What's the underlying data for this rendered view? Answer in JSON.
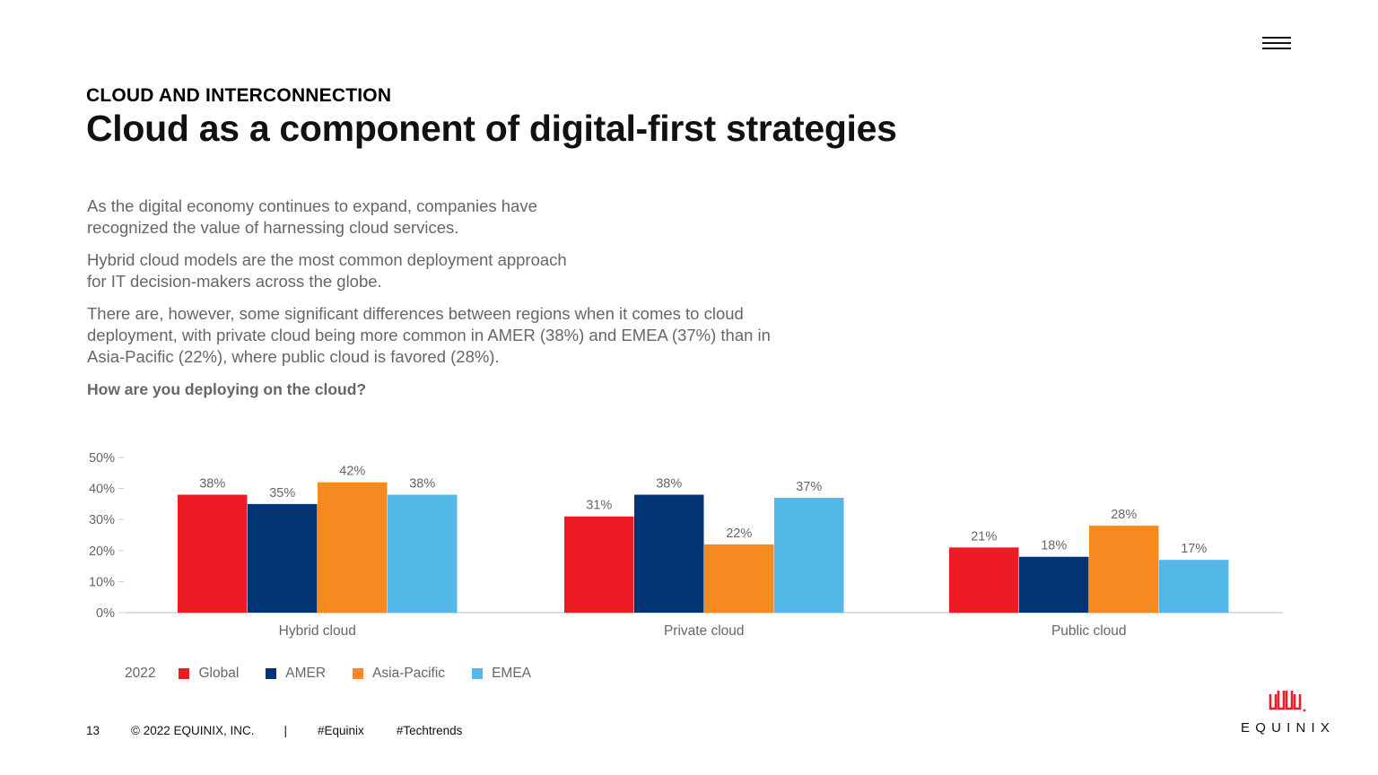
{
  "header": {
    "eyebrow": "CLOUD AND INTERCONNECTION",
    "title": "Cloud as a component of digital-first strategies"
  },
  "body": {
    "paragraph_1": "As the digital economy continues to expand, companies have recognized the value of harnessing cloud services.",
    "paragraph_2": "Hybrid cloud models are the most common deployment approach for IT decision-makers across the globe.",
    "paragraph_3": "There are, however, some significant differences between regions when it comes to cloud deployment, with private cloud being more common in AMER (38%) and EMEA (37%) than in Asia-Pacific (22%), where public cloud is favored (28%).",
    "question": "How are you deploying on the cloud?"
  },
  "chart_data": {
    "type": "bar",
    "categories": [
      "Hybrid cloud",
      "Private cloud",
      "Public cloud"
    ],
    "series": [
      {
        "name": "Global",
        "color": "#ED1C24",
        "values": [
          38,
          31,
          21
        ]
      },
      {
        "name": "AMER",
        "color": "#003473",
        "values": [
          35,
          38,
          18
        ]
      },
      {
        "name": "Asia-Pacific",
        "color": "#F6891F",
        "values": [
          42,
          22,
          28
        ]
      },
      {
        "name": "EMEA",
        "color": "#53B7E8",
        "values": [
          38,
          37,
          17
        ]
      }
    ],
    "value_suffix": "%",
    "yticks": [
      "0%",
      "10%",
      "20%",
      "30%",
      "40%",
      "50%"
    ],
    "ylim": [
      0,
      50
    ],
    "grid": false,
    "legend": {
      "label": "2022",
      "position": "bottom-left"
    }
  },
  "footer": {
    "page_number": "13",
    "copyright": "© 2022 EQUINIX, INC.",
    "separator": "|",
    "hashtag_1": "#Equinix",
    "hashtag_2": "#Techtrends"
  },
  "brand": {
    "logo_text": "EQUINIX",
    "logo_color": "#E4202D"
  },
  "icons": {
    "menu": "hamburger-menu-icon"
  }
}
